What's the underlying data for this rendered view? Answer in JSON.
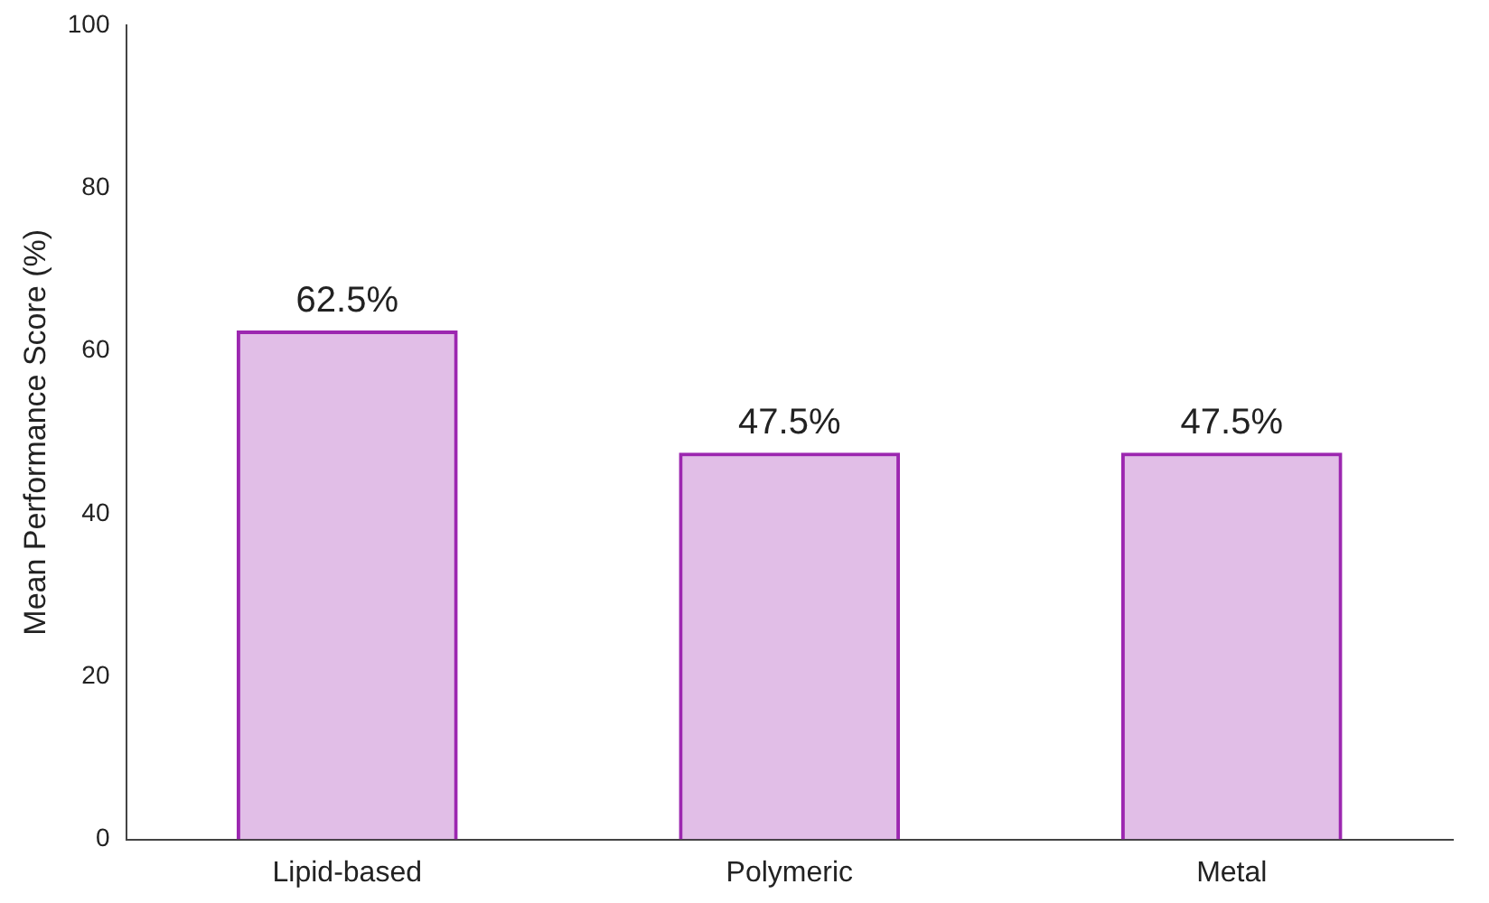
{
  "chart_data": {
    "type": "bar",
    "ylabel": "Mean Performance Score (%)",
    "categories": [
      "Lipid-based",
      "Polymeric",
      "Metal"
    ],
    "values": [
      62.5,
      47.5,
      47.5
    ],
    "value_labels": [
      "62.5%",
      "47.5%",
      "47.5%"
    ],
    "color": "#9c27b0",
    "ylim": [
      0,
      100
    ],
    "yticks": [
      0,
      20,
      40,
      60,
      80,
      100
    ],
    "grid": false,
    "legend": false
  }
}
